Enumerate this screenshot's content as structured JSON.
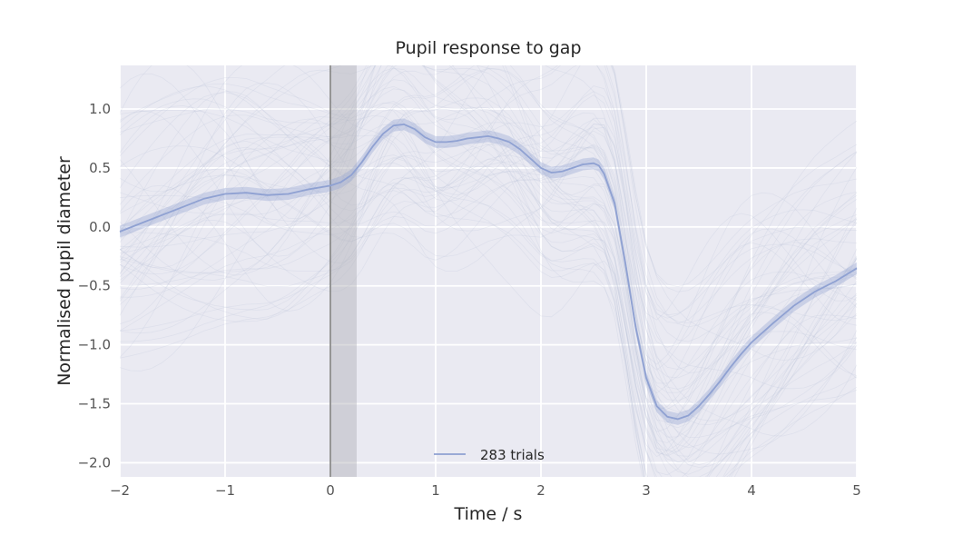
{
  "chart_data": {
    "type": "line",
    "title": "Pupil response to gap",
    "xlabel": "Time / s",
    "ylabel": "Normalised pupil diameter",
    "xlim": [
      -2,
      5
    ],
    "ylim": [
      -2.12,
      1.37
    ],
    "xticks": [
      -2,
      -1,
      0,
      1,
      2,
      3,
      4,
      5
    ],
    "xtick_labels": [
      "−2",
      "−1",
      "0",
      "1",
      "2",
      "3",
      "4",
      "5"
    ],
    "yticks": [
      -2.0,
      -1.5,
      -1.0,
      -0.5,
      0.0,
      0.5,
      1.0
    ],
    "ytick_labels": [
      "−2.0",
      "−1.5",
      "−1.0",
      "−0.5",
      "0.0",
      "0.5",
      "1.0"
    ],
    "grid": true,
    "legend_position": "lower-center",
    "event_line_x": 0,
    "gap_interval": [
      0,
      0.25
    ],
    "series": [
      {
        "name": "283 trials",
        "color": "#8fa1d2",
        "band_halfwidth": 0.05,
        "x": [
          -2.0,
          -1.8,
          -1.6,
          -1.4,
          -1.2,
          -1.0,
          -0.8,
          -0.6,
          -0.4,
          -0.2,
          0.0,
          0.1,
          0.2,
          0.3,
          0.4,
          0.5,
          0.6,
          0.7,
          0.8,
          0.9,
          1.0,
          1.1,
          1.2,
          1.3,
          1.4,
          1.5,
          1.6,
          1.7,
          1.8,
          1.9,
          2.0,
          2.1,
          2.2,
          2.3,
          2.4,
          2.5,
          2.55,
          2.6,
          2.7,
          2.8,
          2.9,
          3.0,
          3.1,
          3.2,
          3.3,
          3.4,
          3.5,
          3.6,
          3.7,
          3.8,
          3.9,
          4.0,
          4.2,
          4.4,
          4.6,
          4.8,
          5.0
        ],
        "y": [
          -0.04,
          0.03,
          0.1,
          0.17,
          0.24,
          0.28,
          0.29,
          0.27,
          0.28,
          0.32,
          0.35,
          0.38,
          0.44,
          0.55,
          0.68,
          0.79,
          0.86,
          0.87,
          0.83,
          0.76,
          0.72,
          0.72,
          0.73,
          0.75,
          0.76,
          0.77,
          0.75,
          0.72,
          0.66,
          0.58,
          0.5,
          0.46,
          0.47,
          0.5,
          0.53,
          0.54,
          0.52,
          0.45,
          0.2,
          -0.3,
          -0.85,
          -1.28,
          -1.52,
          -1.61,
          -1.63,
          -1.6,
          -1.52,
          -1.42,
          -1.31,
          -1.19,
          -1.08,
          -0.98,
          -0.82,
          -0.67,
          -0.55,
          -0.46,
          -0.35
        ]
      }
    ]
  }
}
